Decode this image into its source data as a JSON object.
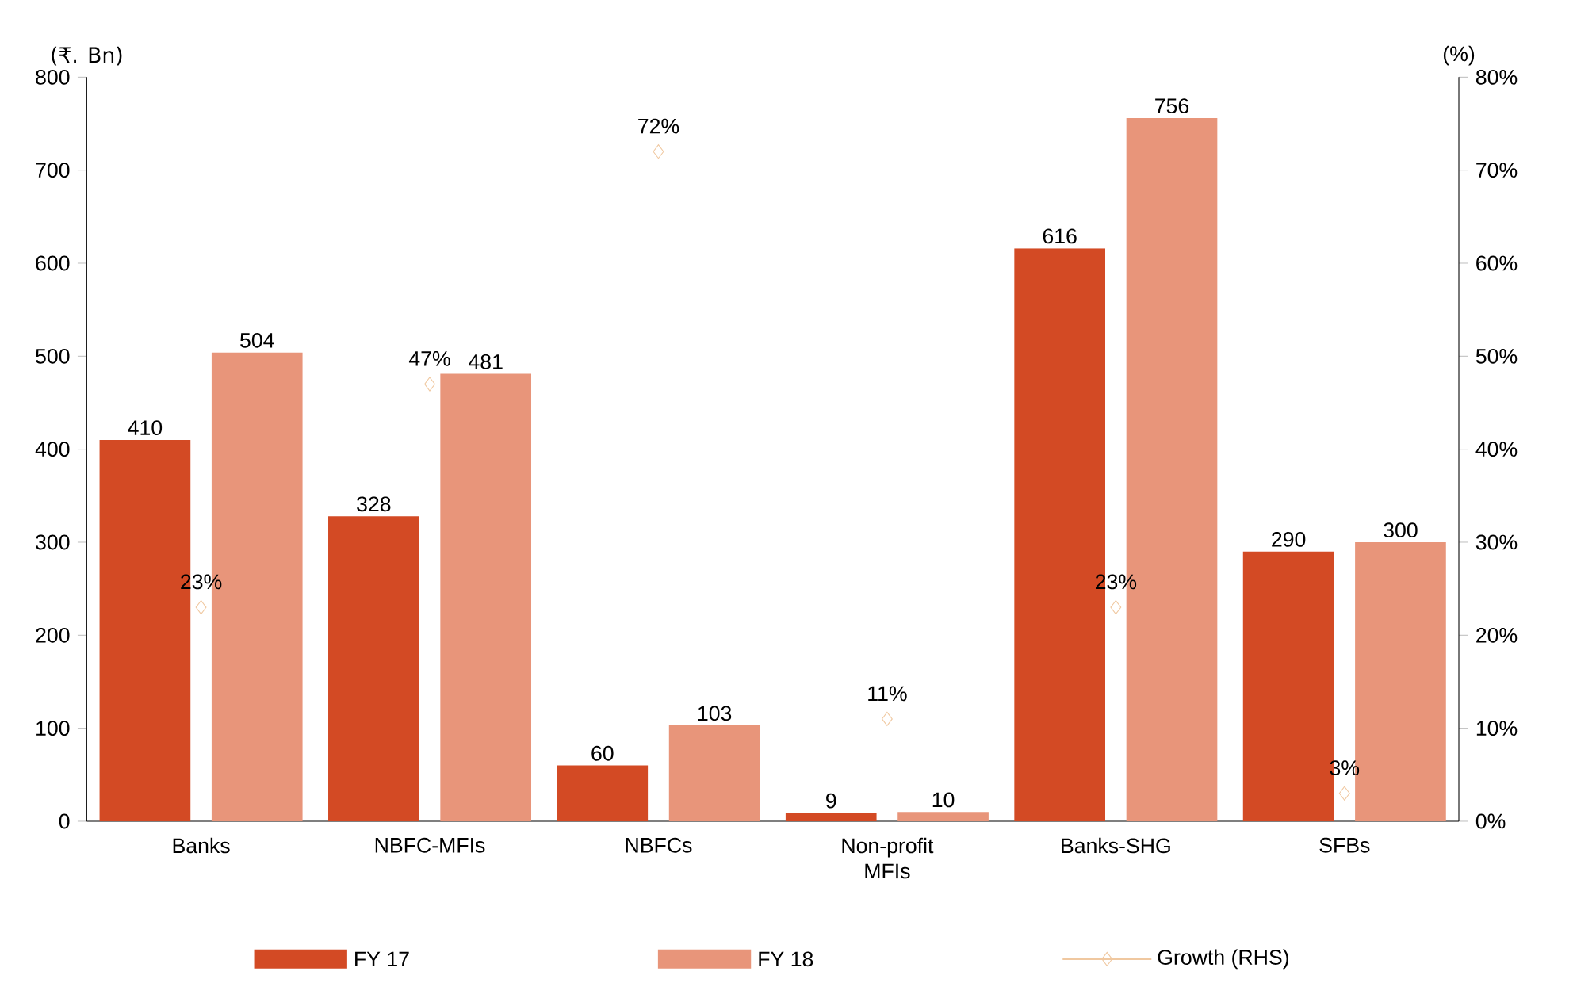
{
  "chart_data": {
    "type": "bar",
    "ylabel": "(₹. Bn)",
    "y2label": "(%)",
    "categories": [
      "Banks",
      "NBFC-MFIs",
      "NBFCs",
      "Non-profit MFIs",
      "Banks-SHG",
      "SFBs"
    ],
    "series": [
      {
        "name": "FY 17",
        "color": "#d34a24",
        "values": [
          410,
          328,
          60,
          9,
          616,
          290
        ]
      },
      {
        "name": "FY 18",
        "color": "#e8957a",
        "values": [
          504,
          481,
          103,
          10,
          756,
          300
        ]
      },
      {
        "name": "Growth (RHS)",
        "type": "scatter",
        "axis": "y2",
        "marker": "diamond",
        "color": "#f0c8a0",
        "values": [
          23,
          47,
          72,
          11,
          23,
          3
        ],
        "value_labels": [
          "23%",
          "47%",
          "72%",
          "11%",
          "23%",
          "3%"
        ]
      }
    ],
    "data_labels": true,
    "ylim": [
      0,
      800
    ],
    "yticks": [
      0,
      100,
      200,
      300,
      400,
      500,
      600,
      700,
      800
    ],
    "y2lim": [
      0,
      80
    ],
    "y2ticks": [
      {
        "value": 0,
        "label": "0%"
      },
      {
        "value": 10,
        "label": "10%"
      },
      {
        "value": 20,
        "label": "20%"
      },
      {
        "value": 30,
        "label": "30%"
      },
      {
        "value": 40,
        "label": "40%"
      },
      {
        "value": 50,
        "label": "50%"
      },
      {
        "value": 60,
        "label": "60%"
      },
      {
        "value": 70,
        "label": "70%"
      },
      {
        "value": 80,
        "label": "80%"
      }
    ],
    "grid": false,
    "legend": "bottom"
  }
}
